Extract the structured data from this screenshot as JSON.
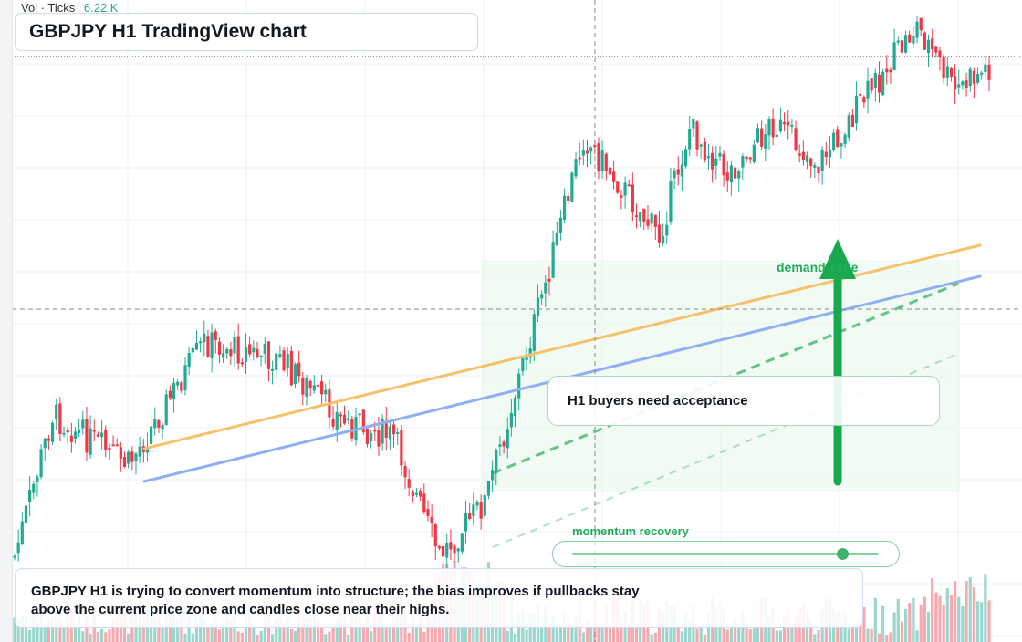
{
  "header": {
    "title": "GBPJPY H1 TradingView chart"
  },
  "volume_legend": {
    "label": "Vol · Ticks",
    "value": "6.22 K"
  },
  "annotations": {
    "zone_label": "demand zone",
    "callout": "H1 buyers need acceptance",
    "momentum_label": "momentum recovery",
    "momentum_level": 0.88,
    "summary": "GBPJPY H1 is trying to convert momentum into structure; the bias improves if pullbacks stay above the current price zone and candles close near their highs."
  },
  "colors": {
    "up": "#22ab94",
    "down": "#f23645",
    "up_volume": "#9bd6cc",
    "down_volume": "#f7a9b0",
    "trend_upper": "#f5c26b",
    "trend_lower": "#8fb0f0",
    "support_dashed": "#3cb86a",
    "demand_zone": "#eaf7ed",
    "arrow": "#18a94e",
    "grid": "#eef0f3"
  },
  "chart_data": {
    "type": "candlestick",
    "symbol": "GBPJPY",
    "timeframe": "H1",
    "title": "GBPJPY H1 TradingView chart",
    "axes_labels_visible": false,
    "volume_series": "Vol · Ticks",
    "last_volume": "6.22 K",
    "seed": 7,
    "phases": [
      [
        10,
        610,
        455
      ],
      [
        30,
        455,
        510
      ],
      [
        50,
        510,
        375
      ],
      [
        70,
        375,
        395
      ],
      [
        86,
        395,
        460
      ],
      [
        100,
        460,
        480
      ],
      [
        112,
        480,
        610
      ],
      [
        124,
        610,
        550
      ],
      [
        140,
        550,
        310
      ],
      [
        150,
        310,
        150
      ],
      [
        162,
        150,
        215
      ],
      [
        170,
        215,
        260
      ],
      [
        178,
        260,
        140
      ],
      [
        188,
        140,
        190
      ],
      [
        200,
        190,
        135
      ],
      [
        212,
        135,
        180
      ],
      [
        228,
        180,
        85
      ],
      [
        238,
        85,
        28
      ],
      [
        248,
        28,
        100
      ],
      [
        258,
        100,
        70
      ]
    ],
    "candle_count": 258,
    "grid": true
  }
}
